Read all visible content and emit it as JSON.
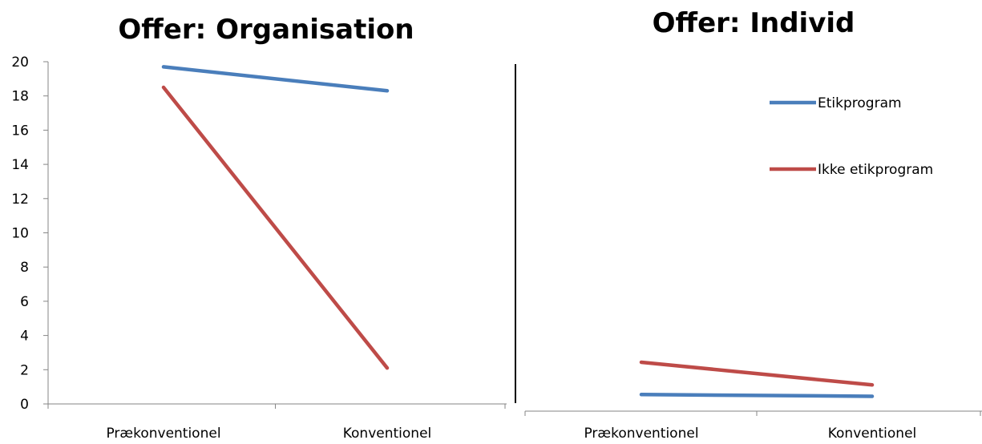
{
  "chart_data": [
    {
      "type": "line",
      "title": "Offer: Organisation",
      "categories": [
        "Prækonventionel",
        "Konventionel"
      ],
      "ylim": [
        0,
        20
      ],
      "yticks": [
        "0",
        "2",
        "4",
        "6",
        "8",
        "10",
        "12",
        "14",
        "16",
        "18",
        "20"
      ],
      "series": [
        {
          "name": "Etikprogram",
          "color": "#4a7ebb",
          "values": [
            19.7,
            18.3
          ]
        },
        {
          "name": "Ikke etikprogram",
          "color": "#be4b48",
          "values": [
            18.5,
            2.1
          ]
        }
      ],
      "grid": false
    },
    {
      "type": "line",
      "title": "Offer: Individ",
      "categories": [
        "Prækonventionel",
        "Konventionel"
      ],
      "ylim": [
        0,
        20
      ],
      "series": [
        {
          "name": "Etikprogram",
          "color": "#4a7ebb",
          "values": [
            0.95,
            0.85
          ]
        },
        {
          "name": "Ikke etikprogram",
          "color": "#be4b48",
          "values": [
            2.8,
            1.5
          ]
        }
      ],
      "legend": "top-right",
      "grid": false
    }
  ]
}
